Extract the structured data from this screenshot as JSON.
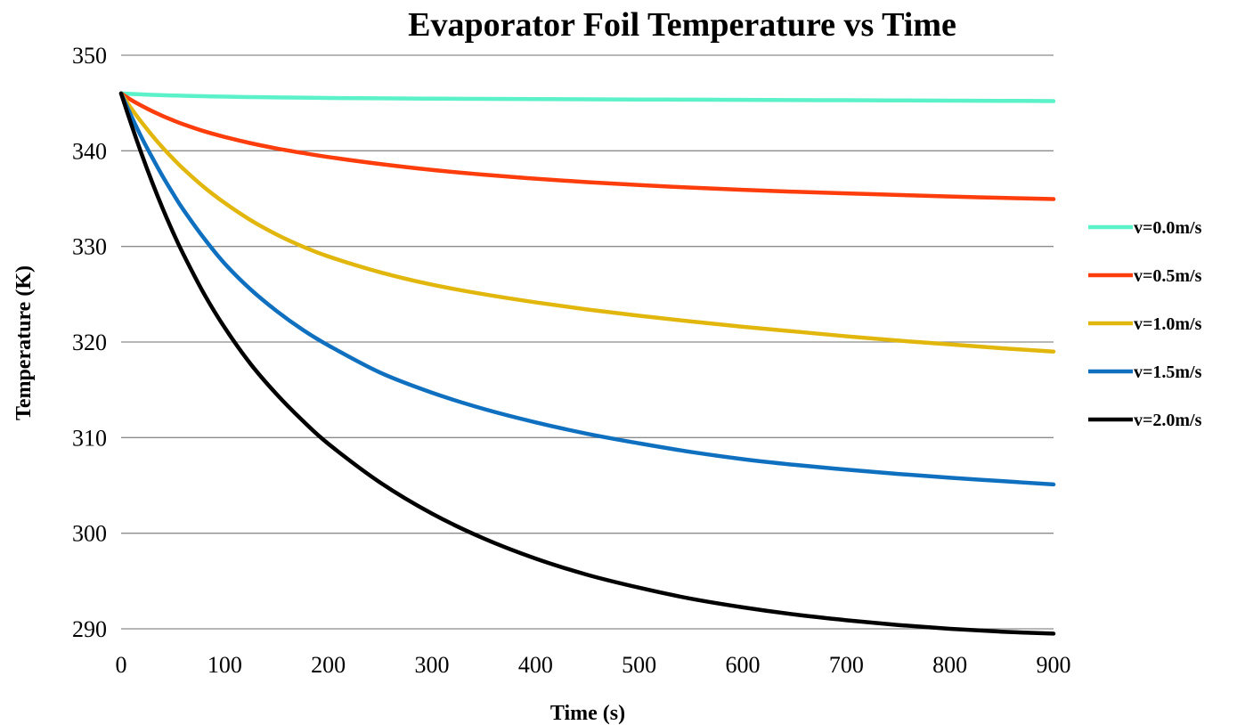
{
  "chart_data": {
    "type": "line",
    "title": "Evaporator Foil Temperature vs Time",
    "xlabel": "Time (s)",
    "ylabel": "Temperature (K)",
    "xlim": [
      0,
      900
    ],
    "ylim": [
      290,
      350
    ],
    "xticks": [
      0,
      100,
      200,
      300,
      400,
      500,
      600,
      700,
      800,
      900
    ],
    "yticks": [
      290,
      300,
      310,
      320,
      330,
      340,
      350
    ],
    "grid": true,
    "legend_position": "right",
    "x": [
      0,
      10,
      20,
      30,
      40,
      50,
      60,
      80,
      100,
      125,
      150,
      175,
      200,
      250,
      300,
      350,
      400,
      450,
      500,
      550,
      600,
      650,
      700,
      750,
      800,
      850,
      900
    ],
    "series": [
      {
        "name": "v=0.0m/s",
        "color": "#5cf2c9",
        "values": [
          346.0,
          345.95,
          345.9,
          345.86,
          345.82,
          345.79,
          345.76,
          345.71,
          345.67,
          345.62,
          345.59,
          345.56,
          345.53,
          345.49,
          345.46,
          345.43,
          345.41,
          345.39,
          345.37,
          345.35,
          345.33,
          345.31,
          345.29,
          345.27,
          345.25,
          345.23,
          345.2
        ]
      },
      {
        "name": "v=0.5m/s",
        "color": "#fe3d0c",
        "values": [
          346.0,
          345.3,
          344.7,
          344.15,
          343.65,
          343.2,
          342.78,
          342.05,
          341.45,
          340.8,
          340.25,
          339.78,
          339.35,
          338.62,
          338.0,
          337.5,
          337.08,
          336.72,
          336.42,
          336.15,
          335.92,
          335.72,
          335.55,
          335.38,
          335.22,
          335.08,
          334.95
        ]
      },
      {
        "name": "v=1.0m/s",
        "color": "#e2b70d",
        "values": [
          346.0,
          344.4,
          342.95,
          341.6,
          340.35,
          339.2,
          338.12,
          336.2,
          334.55,
          332.75,
          331.25,
          330.0,
          328.95,
          327.3,
          326.0,
          325.0,
          324.15,
          323.4,
          322.75,
          322.15,
          321.6,
          321.1,
          320.6,
          320.15,
          319.75,
          319.35,
          319.0
        ]
      },
      {
        "name": "v=1.5m/s",
        "color": "#1070c0",
        "values": [
          346.0,
          343.6,
          341.35,
          339.3,
          337.35,
          335.55,
          333.85,
          330.85,
          328.2,
          325.5,
          323.25,
          321.3,
          319.65,
          316.8,
          314.7,
          313.0,
          311.6,
          310.4,
          309.4,
          308.5,
          307.75,
          307.15,
          306.65,
          306.2,
          305.8,
          305.45,
          305.1
        ]
      },
      {
        "name": "v=2.0m/s",
        "color": "#000000",
        "values": [
          346.0,
          342.7,
          339.6,
          336.7,
          334.0,
          331.5,
          329.2,
          325.05,
          321.5,
          317.7,
          314.55,
          311.8,
          309.35,
          305.3,
          302.05,
          299.45,
          297.35,
          295.65,
          294.3,
          293.15,
          292.25,
          291.5,
          290.9,
          290.4,
          290.0,
          289.7,
          289.5
        ]
      }
    ]
  }
}
